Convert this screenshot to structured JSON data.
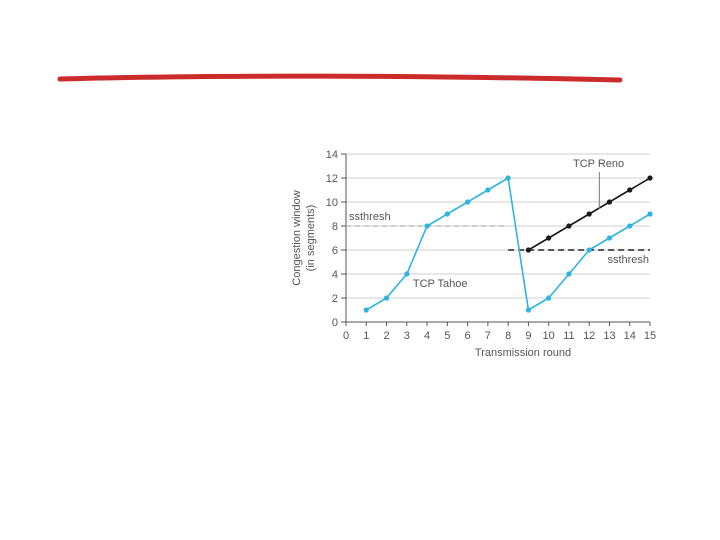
{
  "colors": {
    "underline": "#cc2b2b",
    "grid": "#cfcfcf",
    "axis": "#555555",
    "tahoe": "#2fb3df",
    "reno": "#1a1a1a",
    "ssthresh_old": "#b0b0b0",
    "ssthresh_new": "#222222"
  },
  "chart_data": {
    "type": "line",
    "xlabel": "Transmission round",
    "ylabel": "Congestion window\n(in segments)",
    "ylabel_lines": [
      "Congestion window",
      "(in segments)"
    ],
    "xlim": [
      0,
      15
    ],
    "ylim": [
      0,
      14
    ],
    "x_ticks": [
      0,
      1,
      2,
      3,
      4,
      5,
      6,
      7,
      8,
      9,
      10,
      11,
      12,
      13,
      14,
      15
    ],
    "y_ticks": [
      0,
      2,
      4,
      6,
      8,
      10,
      12,
      14
    ],
    "grid": true,
    "series": [
      {
        "name": "TCP Tahoe",
        "x": [
          1,
          2,
          3,
          4,
          5,
          6,
          7,
          8,
          9,
          10,
          11,
          12,
          13,
          14,
          15
        ],
        "y": [
          1,
          2,
          4,
          8,
          9,
          10,
          11,
          12,
          1,
          2,
          4,
          6,
          7,
          8,
          9
        ]
      },
      {
        "name": "TCP Reno",
        "x": [
          9,
          10,
          11,
          12,
          13,
          14,
          15
        ],
        "y": [
          6,
          7,
          8,
          9,
          10,
          11,
          12
        ]
      }
    ],
    "thresholds": [
      {
        "label": "ssthresh",
        "y": 8,
        "x_range": [
          0,
          8
        ],
        "style": "dashed-light"
      },
      {
        "label": "ssthresh",
        "y": 6,
        "x_range": [
          8,
          15
        ],
        "style": "dashed-dark"
      }
    ],
    "annotations": {
      "tahoe_label": "TCP Tahoe",
      "reno_label": "TCP Reno",
      "ssthresh_upper": "ssthresh",
      "ssthresh_lower": "ssthresh"
    }
  }
}
